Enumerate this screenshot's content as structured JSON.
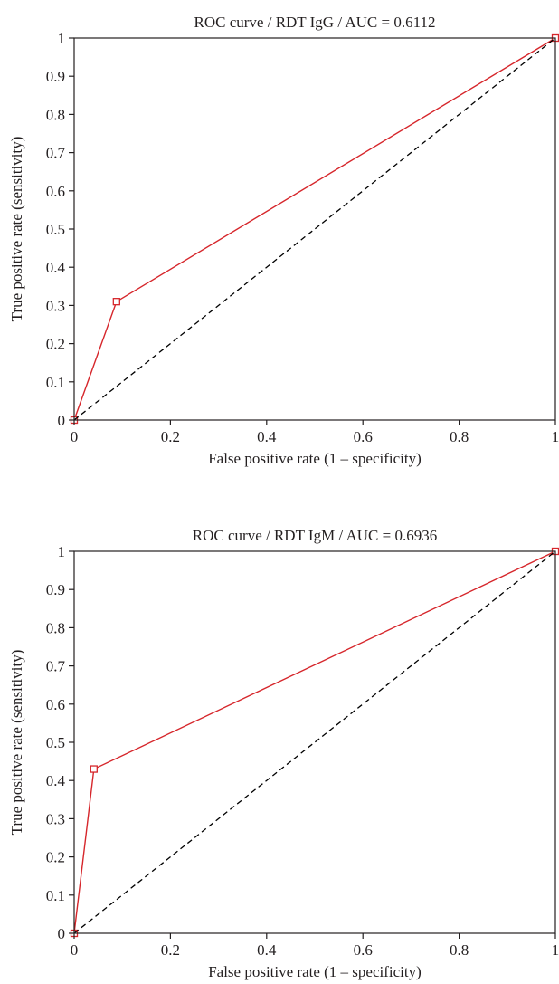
{
  "chart_data": [
    {
      "type": "line",
      "title": "ROC curve / RDT IgG / AUC = 0.6112",
      "xlabel": "False positive rate (1 – specificity)",
      "ylabel": "True positive rate (sensitivity)",
      "xlim": [
        0,
        1
      ],
      "ylim": [
        0,
        1
      ],
      "x_ticks": [
        0,
        0.2,
        0.4,
        0.6,
        0.8,
        1
      ],
      "x_tick_labels": [
        "0",
        "0.2",
        "0.4",
        "0.6",
        "0.8",
        "1"
      ],
      "y_ticks": [
        0,
        0.1,
        0.2,
        0.3,
        0.4,
        0.5,
        0.6,
        0.7,
        0.8,
        0.9,
        1
      ],
      "y_tick_labels": [
        "0",
        "0.1",
        "0.2",
        "0.3",
        "0.4",
        "0.5",
        "0.6",
        "0.7",
        "0.8",
        "0.9",
        "1"
      ],
      "grid": false,
      "series": [
        {
          "style": "solid",
          "color": "#d6262b",
          "markers": "open-square",
          "x": [
            0,
            0.088,
            1
          ],
          "y": [
            0,
            0.31,
            1
          ]
        },
        {
          "style": "dashed",
          "color": "#000000",
          "markers": "none",
          "x": [
            0,
            1
          ],
          "y": [
            0,
            1
          ]
        }
      ]
    },
    {
      "type": "line",
      "title": "ROC curve / RDT IgM / AUC = 0.6936",
      "xlabel": "False positive rate (1 – specificity)",
      "ylabel": "True positive rate (sensitivity)",
      "xlim": [
        0,
        1
      ],
      "ylim": [
        0,
        1
      ],
      "x_ticks": [
        0,
        0.2,
        0.4,
        0.6,
        0.8,
        1
      ],
      "x_tick_labels": [
        "0",
        "0.2",
        "0.4",
        "0.6",
        "0.8",
        "1"
      ],
      "y_ticks": [
        0,
        0.1,
        0.2,
        0.3,
        0.4,
        0.5,
        0.6,
        0.7,
        0.8,
        0.9,
        1
      ],
      "y_tick_labels": [
        "0",
        "0.1",
        "0.2",
        "0.3",
        "0.4",
        "0.5",
        "0.6",
        "0.7",
        "0.8",
        "0.9",
        "1"
      ],
      "grid": false,
      "series": [
        {
          "style": "solid",
          "color": "#d6262b",
          "markers": "open-square",
          "x": [
            0,
            0.041,
            1
          ],
          "y": [
            0,
            0.43,
            1
          ]
        },
        {
          "style": "dashed",
          "color": "#000000",
          "markers": "none",
          "x": [
            0,
            1
          ],
          "y": [
            0,
            1
          ]
        }
      ]
    }
  ]
}
